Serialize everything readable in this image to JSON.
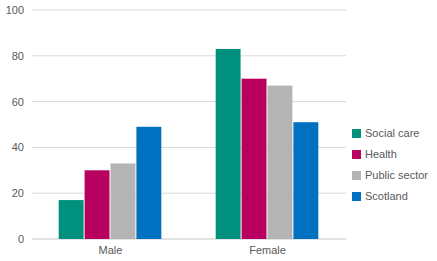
{
  "chart_data": {
    "type": "bar",
    "categories": [
      "Male",
      "Female"
    ],
    "series": [
      {
        "name": "Social care",
        "color": "#00907e",
        "values": [
          17,
          83
        ]
      },
      {
        "name": "Health",
        "color": "#b8005f",
        "values": [
          30,
          70
        ]
      },
      {
        "name": "Public sector",
        "color": "#b4b4b4",
        "values": [
          33,
          67
        ]
      },
      {
        "name": "Scotland",
        "color": "#0070c0",
        "values": [
          49,
          51
        ]
      }
    ],
    "ylim": [
      0,
      100
    ],
    "yticks": [
      0,
      20,
      40,
      60,
      80,
      100
    ],
    "grid": true,
    "legend": "right"
  }
}
